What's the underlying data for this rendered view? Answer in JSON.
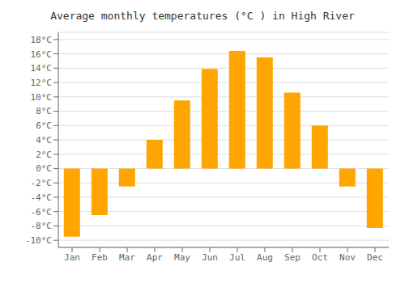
{
  "chart_data": {
    "type": "bar",
    "title": "Average monthly temperatures (°C ) in High River",
    "categories": [
      "Jan",
      "Feb",
      "Mar",
      "Apr",
      "May",
      "Jun",
      "Jul",
      "Aug",
      "Sep",
      "Oct",
      "Nov",
      "Dec"
    ],
    "values": [
      -9.5,
      -6.5,
      -2.5,
      4.0,
      9.5,
      13.9,
      16.4,
      15.5,
      10.6,
      6.0,
      -2.5,
      -8.3
    ],
    "color": "#FFA500",
    "ylim": [
      -11,
      19
    ],
    "yticks": [
      {
        "value": -10,
        "label": "-10°C"
      },
      {
        "value": -8,
        "label": "-8°C"
      },
      {
        "value": -6,
        "label": "-6°C"
      },
      {
        "value": -4,
        "label": "-4°C"
      },
      {
        "value": -2,
        "label": "-2°C"
      },
      {
        "value": 0,
        "label": "0°C"
      },
      {
        "value": 2,
        "label": "2°C"
      },
      {
        "value": 4,
        "label": "4°C"
      },
      {
        "value": 6,
        "label": "6°C"
      },
      {
        "value": 8,
        "label": "8°C"
      },
      {
        "value": 10,
        "label": "10°C"
      },
      {
        "value": 12,
        "label": "12°C"
      },
      {
        "value": 14,
        "label": "14°C"
      },
      {
        "value": 16,
        "label": "16°C"
      },
      {
        "value": 18,
        "label": "18°C"
      }
    ],
    "grid": true
  }
}
